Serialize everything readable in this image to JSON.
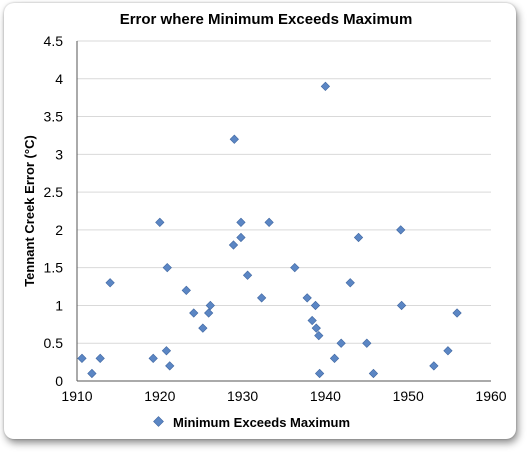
{
  "chart_data": {
    "type": "scatter",
    "title": "Error where Minimum Exceeds Maximum",
    "xlabel": "",
    "ylabel": "Tennant Creek Error (°C)",
    "xlim": [
      1910,
      1960
    ],
    "ylim": [
      0,
      4.5
    ],
    "x_ticks": [
      "1910",
      "1920",
      "1930",
      "1940",
      "1950",
      "1960"
    ],
    "y_ticks": [
      "0",
      "0.5",
      "1",
      "1.5",
      "2",
      "2.5",
      "3",
      "3.5",
      "4",
      "4.5"
    ],
    "grid": "horizontal",
    "legend": "bottom",
    "series": [
      {
        "name": "Minimum Exceeds Maximum",
        "color": "#5b86c4",
        "points": [
          {
            "x": 1910.6,
            "y": 0.3
          },
          {
            "x": 1911.8,
            "y": 0.1
          },
          {
            "x": 1912.8,
            "y": 0.3
          },
          {
            "x": 1914.0,
            "y": 1.3
          },
          {
            "x": 1919.2,
            "y": 0.3
          },
          {
            "x": 1920.0,
            "y": 2.1
          },
          {
            "x": 1920.8,
            "y": 0.4
          },
          {
            "x": 1920.9,
            "y": 1.5
          },
          {
            "x": 1921.2,
            "y": 0.2
          },
          {
            "x": 1923.2,
            "y": 1.2
          },
          {
            "x": 1924.1,
            "y": 0.9
          },
          {
            "x": 1925.2,
            "y": 0.7
          },
          {
            "x": 1925.9,
            "y": 0.9
          },
          {
            "x": 1926.1,
            "y": 1.0
          },
          {
            "x": 1929.0,
            "y": 3.2
          },
          {
            "x": 1928.9,
            "y": 1.8
          },
          {
            "x": 1929.8,
            "y": 2.1
          },
          {
            "x": 1929.8,
            "y": 1.9
          },
          {
            "x": 1930.6,
            "y": 1.4
          },
          {
            "x": 1932.3,
            "y": 1.1
          },
          {
            "x": 1933.2,
            "y": 2.1
          },
          {
            "x": 1936.3,
            "y": 1.5
          },
          {
            "x": 1937.8,
            "y": 1.1
          },
          {
            "x": 1938.4,
            "y": 0.8
          },
          {
            "x": 1938.8,
            "y": 1.0
          },
          {
            "x": 1938.9,
            "y": 0.7
          },
          {
            "x": 1939.2,
            "y": 0.6
          },
          {
            "x": 1939.3,
            "y": 0.1
          },
          {
            "x": 1940.0,
            "y": 3.9
          },
          {
            "x": 1941.1,
            "y": 0.3
          },
          {
            "x": 1941.9,
            "y": 0.5
          },
          {
            "x": 1943.0,
            "y": 1.3
          },
          {
            "x": 1944.0,
            "y": 1.9
          },
          {
            "x": 1945.0,
            "y": 0.5
          },
          {
            "x": 1945.8,
            "y": 0.1
          },
          {
            "x": 1949.1,
            "y": 2.0
          },
          {
            "x": 1949.2,
            "y": 1.0
          },
          {
            "x": 1953.1,
            "y": 0.2
          },
          {
            "x": 1954.8,
            "y": 0.4
          },
          {
            "x": 1955.9,
            "y": 0.9
          }
        ]
      }
    ]
  }
}
